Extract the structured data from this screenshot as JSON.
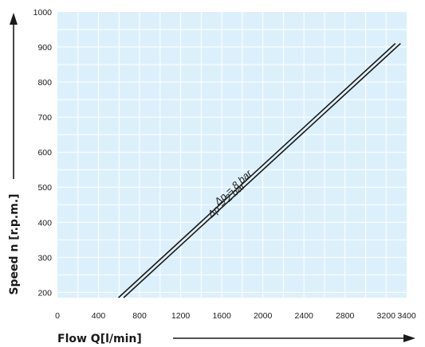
{
  "chart_data": {
    "type": "line",
    "xlabel": "Flow Q[l/min]",
    "ylabel": "Speed n [r.p.m.]",
    "xlim": [
      0,
      3400
    ],
    "ylim": [
      185,
      1000
    ],
    "x_ticks": [
      0,
      400,
      800,
      1200,
      1600,
      2000,
      2400,
      2800,
      3200,
      3400
    ],
    "x_tick_labels": [
      "0",
      "400",
      "800",
      "1200",
      "1600",
      "2000",
      "2400",
      "2800",
      "3200",
      "3400"
    ],
    "y_ticks": [
      200,
      300,
      400,
      500,
      600,
      700,
      800,
      900,
      1000
    ],
    "y_tick_labels": [
      "200",
      "300",
      "400",
      "500",
      "600",
      "700",
      "800",
      "900",
      "1000"
    ],
    "grid": true,
    "background_color": "#dcf0fc",
    "grid_color": "#ffffff",
    "line_color": "#1a1a1a",
    "series": [
      {
        "name": "Δp = 8 bar",
        "x": [
          595,
          3290
        ],
        "y": [
          185,
          910
        ]
      },
      {
        "name": "Δp = 2 bar",
        "x": [
          645,
          3340
        ],
        "y": [
          185,
          910
        ]
      }
    ]
  }
}
